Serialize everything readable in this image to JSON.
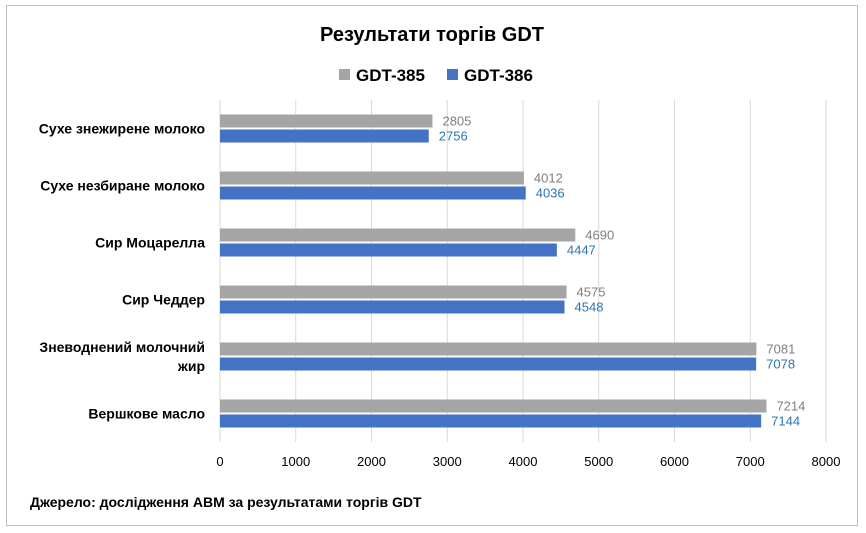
{
  "chart_data": {
    "type": "bar",
    "orientation": "horizontal",
    "title": "Результати торгів GDT",
    "categories": [
      [
        "Сухе знежирене молоко"
      ],
      [
        "Сухе незбиране молоко"
      ],
      [
        "Сир Моцарелла"
      ],
      [
        "Сир Чеддер"
      ],
      [
        "Зневоднений молочний",
        "жир"
      ],
      [
        "Вершкове масло"
      ]
    ],
    "series": [
      {
        "name": "GDT-385",
        "color": "#a5a5a5",
        "label_color": "#7f7f7f",
        "values": [
          2805,
          4012,
          4690,
          4575,
          7081,
          7214
        ]
      },
      {
        "name": "GDT-386",
        "color": "#4472c4",
        "label_color": "#2e75b6",
        "values": [
          2756,
          4036,
          4447,
          4548,
          7078,
          7144
        ]
      }
    ],
    "xlim": [
      0,
      8000
    ],
    "xticks": [
      0,
      1000,
      2000,
      3000,
      4000,
      5000,
      6000,
      7000,
      8000
    ],
    "grid": true,
    "legend_position": "top-center",
    "source": "Джерело: дослідження АВМ за результатами торгів GDT"
  }
}
